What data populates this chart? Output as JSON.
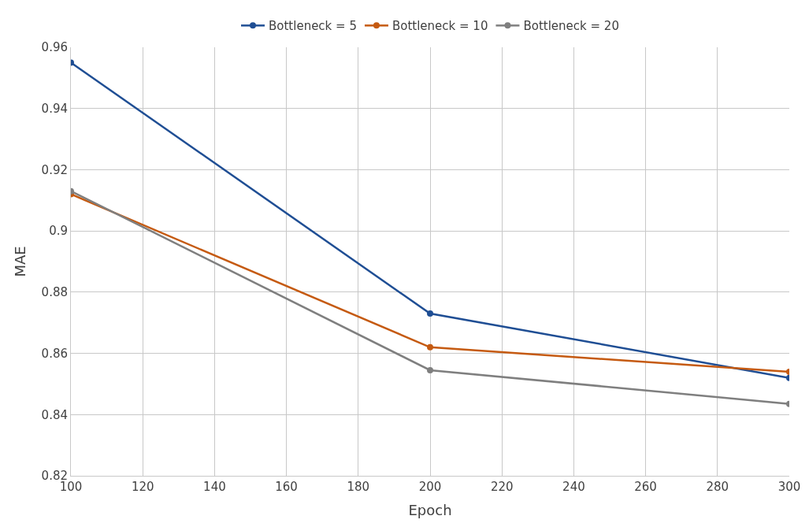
{
  "chart_data": {
    "type": "line",
    "xlabel": "Epoch",
    "ylabel": "MAE",
    "x": [
      100,
      200,
      300
    ],
    "series": [
      {
        "name": "Bottleneck = 5",
        "color": "#1f4e94",
        "values": [
          0.955,
          0.873,
          0.852
        ]
      },
      {
        "name": "Bottleneck = 10",
        "color": "#c55a11",
        "values": [
          0.912,
          0.862,
          0.854
        ]
      },
      {
        "name": "Bottleneck = 20",
        "color": "#7f7f7f",
        "values": [
          0.913,
          0.8545,
          0.8435
        ]
      }
    ],
    "xlim": [
      100,
      300
    ],
    "xticks": [
      100,
      120,
      140,
      160,
      180,
      200,
      220,
      240,
      260,
      280,
      300
    ],
    "ylim": [
      0.82,
      0.96
    ],
    "yticks": [
      0.82,
      0.84,
      0.86,
      0.88,
      {
        "value": 0.9,
        "label": "0.9"
      },
      0.92,
      0.94,
      0.96
    ],
    "grid": true,
    "legend": "top",
    "marker": "circle",
    "line_style": "solid"
  }
}
